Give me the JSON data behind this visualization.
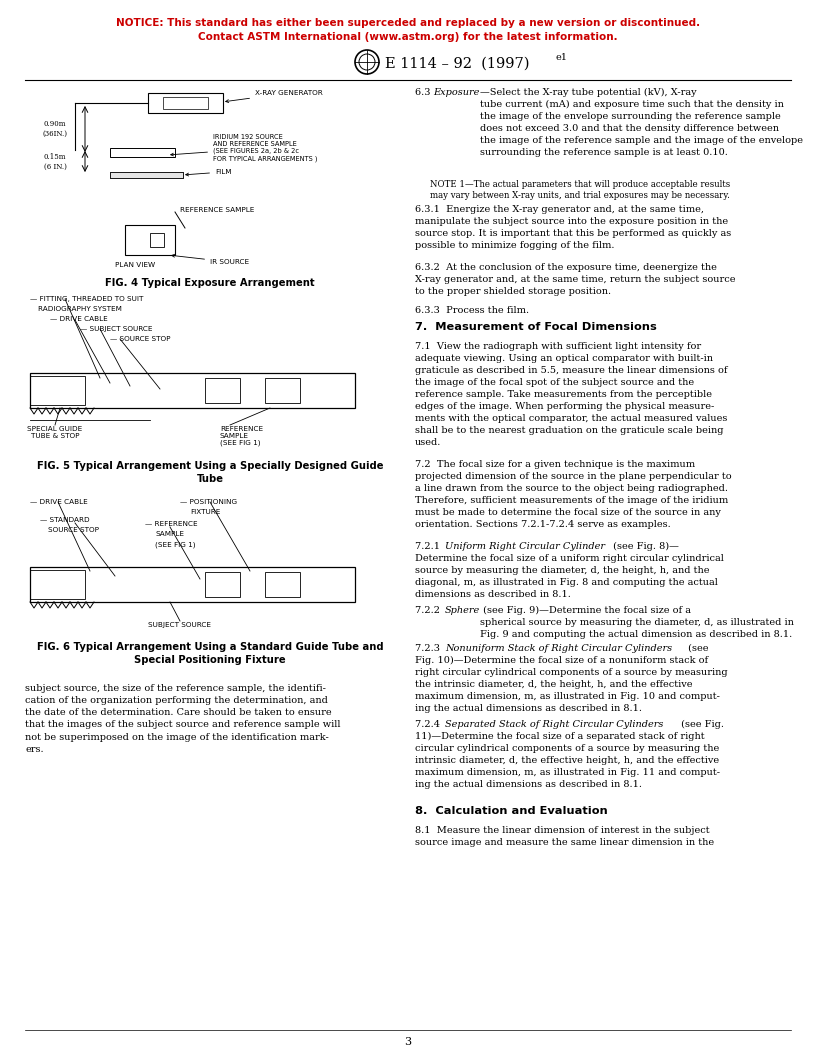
{
  "notice_line1": "NOTICE: This standard has either been superceded and replaced by a new version or discontinued.",
  "notice_line2": "Contact ASTM International (www.astm.org) for the latest information.",
  "notice_color": "#CC0000",
  "page_number": "3",
  "background_color": "#FFFFFF",
  "text_color": "#000000",
  "body_font_size": 7.0,
  "small_font_size": 6.0,
  "caption_font_size": 7.2,
  "section_font_size": 8.2,
  "notice_font_size": 7.5,
  "header_font_size": 10.5
}
